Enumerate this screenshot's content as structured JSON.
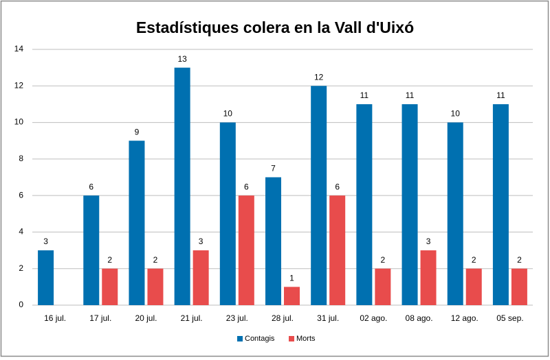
{
  "chart_data": {
    "type": "bar",
    "title": "Estadístiques colera en la Vall d'Uixó",
    "categories": [
      "16 jul.",
      "17 jul.",
      "20 jul.",
      "21 jul.",
      "23 jul.",
      "28 jul.",
      "31 jul.",
      "02 ago.",
      "08 ago.",
      "12 ago.",
      "05 sep."
    ],
    "series": [
      {
        "name": "Contagis",
        "color": "#0070b0",
        "values": [
          3,
          6,
          9,
          13,
          10,
          7,
          12,
          11,
          11,
          10,
          11
        ]
      },
      {
        "name": "Morts",
        "color": "#e84c4c",
        "values": [
          null,
          2,
          2,
          3,
          6,
          1,
          6,
          2,
          3,
          2,
          2
        ]
      }
    ],
    "ylim": [
      0,
      14
    ],
    "yticks": [
      0,
      2,
      4,
      6,
      8,
      10,
      12,
      14
    ],
    "grid": true,
    "legend": "bottom"
  }
}
